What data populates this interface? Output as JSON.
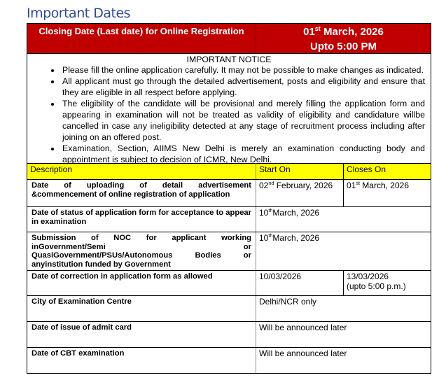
{
  "title": "Important Dates",
  "closing": {
    "label": "Closing Date (Last date) for Online Registration",
    "date_day": "01",
    "date_sup": "st",
    "date_rest": " March, 2026",
    "time": "Upto 5:00 PM"
  },
  "notice": {
    "heading": "IMPORTANT NOTICE",
    "items": [
      "Please fill the online application carefully.  It may not be possible to make changes as indicated.",
      "All applicant must go through the detailed advertisement, posts and eligibility and ensure that they are eligible in all respect before applying.",
      "The eligibility of the candidate will be provisional and merely filling the application form and appearing in examination will not be treated as validity of eligibility and candidature willbe cancelled in case any ineligibility detected at any stage of recruitment process including after joining on an offered post.",
      "Examination, Section, AIIMS New Delhi is merely an examination conducting body and appointment is subject to decision of ICMR, New Delhi."
    ]
  },
  "table": {
    "headers": [
      "Description",
      "Start On",
      "Closes On"
    ],
    "rows": [
      {
        "desc": "Date of uploading of detail advertisement &commencement of online registration of application",
        "start_day": "02",
        "start_sup": "nd",
        "start_rest": " February, 2026",
        "close_day": "01",
        "close_sup": "st",
        "close_rest": " March, 2026"
      },
      {
        "desc": "Date of status of application form for acceptance to appear in examination",
        "start_day": "10",
        "start_sup": "th",
        "start_rest": "March, 2026"
      },
      {
        "desc": "Submission of NOC for applicant working inGovernment/Semi or QuasiGovernment/PSUs/Autonomous Bodies or anyinstitution funded by Government",
        "start_day": "10",
        "start_sup": "th",
        "start_rest": "March, 2026"
      },
      {
        "desc": "Date of correction in application form as allowed",
        "start": "10/03/2026",
        "close": "13/03/2026",
        "close_note": "(upto 5:00 p.m.)"
      },
      {
        "desc": "City of Examination Centre",
        "start": "Delhi/NCR only"
      },
      {
        "desc": "Date of issue of admit card",
        "start": "Will be announced later"
      },
      {
        "desc": "Date of CBT examination",
        "start": "Will be announced later"
      }
    ]
  }
}
